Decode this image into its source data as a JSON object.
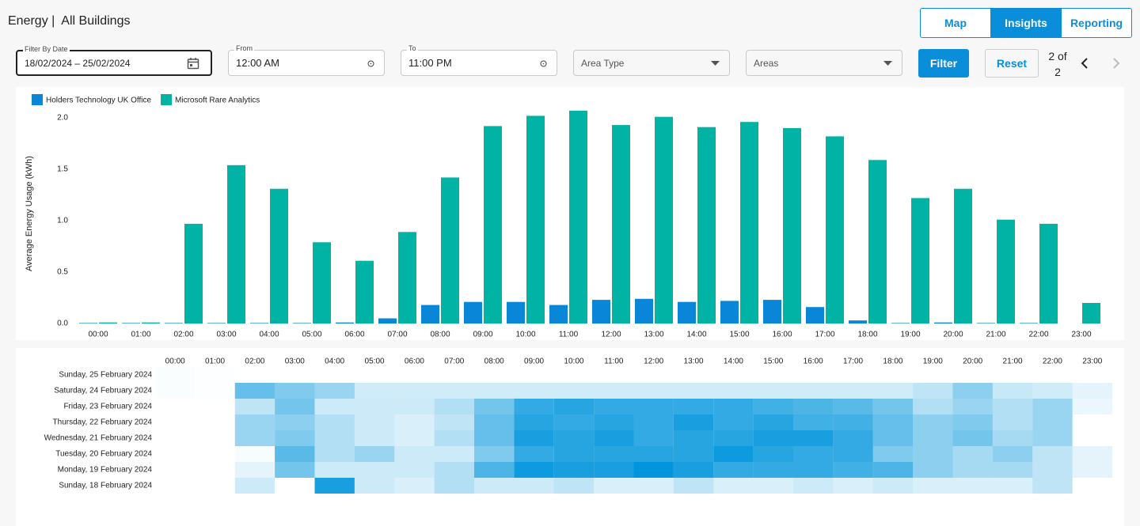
{
  "header": {
    "title": "Energy |  All Buildings",
    "tabs": [
      "Map",
      "Insights",
      "Reporting"
    ]
  },
  "filters": {
    "date": {
      "label": "Filter By Date",
      "value": "18/02/2024 – 25/02/2024"
    },
    "from": {
      "label": "From",
      "value": "12:00 AM"
    },
    "to": {
      "label": "To",
      "value": "11:00 PM"
    },
    "area_type": "Area Type",
    "areas": "Areas",
    "filter_button": "Filter",
    "reset_button": "Reset",
    "pagination": "2 of 2"
  },
  "chart_data": [
    {
      "type": "bar",
      "y_label": "Average Energy Usage (kWh)",
      "categories": [
        "00:00",
        "01:00",
        "02:00",
        "03:00",
        "04:00",
        "05:00",
        "06:00",
        "07:00",
        "08:00",
        "09:00",
        "10:00",
        "11:00",
        "12:00",
        "13:00",
        "14:00",
        "15:00",
        "16:00",
        "17:00",
        "18:00",
        "19:00",
        "20:00",
        "21:00",
        "22:00",
        "23:00"
      ],
      "series": [
        {
          "name": "Holders Technology UK Office",
          "color": "#0a86d8",
          "values": [
            0.005,
            0.005,
            0.005,
            0.005,
            0.005,
            0.005,
            0.01,
            0.05,
            0.18,
            0.21,
            0.21,
            0.18,
            0.23,
            0.24,
            0.21,
            0.22,
            0.23,
            0.16,
            0.03,
            0.005,
            0.01,
            0.005,
            0.005,
            0
          ]
        },
        {
          "name": "Microsoft Rare Analytics",
          "color": "#00b3a4",
          "values": [
            0.01,
            0.01,
            0.97,
            1.54,
            1.31,
            0.79,
            0.61,
            0.89,
            1.42,
            1.92,
            2.02,
            2.07,
            1.93,
            2.01,
            1.91,
            1.96,
            1.9,
            1.82,
            1.59,
            1.22,
            1.31,
            1.01,
            0.97,
            0.2
          ]
        }
      ],
      "ylim": [
        0,
        2.1
      ],
      "yticks": [
        {
          "value": 0,
          "label": "0.0"
        },
        0.5,
        {
          "value": 1,
          "label": "1.0"
        },
        1.5,
        {
          "value": 2,
          "label": "2.0"
        }
      ],
      "grid": false,
      "legend": "top-left"
    },
    {
      "type": "heatmap",
      "color": "#0095dc",
      "x": [
        "00:00",
        "01:00",
        "02:00",
        "03:00",
        "04:00",
        "05:00",
        "06:00",
        "07:00",
        "08:00",
        "09:00",
        "10:00",
        "11:00",
        "12:00",
        "13:00",
        "14:00",
        "15:00",
        "16:00",
        "17:00",
        "18:00",
        "19:00",
        "20:00",
        "21:00",
        "22:00",
        "23:00"
      ],
      "y": [
        "Sunday, 25 February 2024",
        "Saturday, 24 February 2024",
        "Friday, 23 February 2024",
        "Thursday, 22 February 2024",
        "Wednesday, 21 February 2024",
        "Tuesday, 20 February 2024",
        "Monday, 19 February 2024",
        "Sunday, 18 February 2024"
      ],
      "values": [
        [
          0.02,
          0.01,
          null,
          null,
          null,
          null,
          null,
          null,
          null,
          null,
          null,
          null,
          null,
          null,
          null,
          null,
          null,
          null,
          null,
          null,
          null,
          null,
          null,
          null
        ],
        [
          0.02,
          0.01,
          0.6,
          0.5,
          0.4,
          0.18,
          0.18,
          0.18,
          0.18,
          0.18,
          0.18,
          0.18,
          0.18,
          0.18,
          0.18,
          0.18,
          0.18,
          0.18,
          0.18,
          0.25,
          0.45,
          0.22,
          0.18,
          0.1
        ],
        [
          null,
          null,
          0.25,
          0.55,
          0.2,
          0.2,
          0.2,
          0.3,
          0.55,
          0.8,
          0.85,
          0.8,
          0.8,
          0.8,
          0.8,
          0.75,
          0.7,
          0.65,
          0.55,
          0.3,
          0.4,
          0.3,
          0.4,
          0.08
        ],
        [
          null,
          null,
          0.4,
          0.45,
          0.3,
          0.2,
          0.15,
          0.25,
          0.6,
          0.85,
          0.8,
          0.85,
          0.8,
          0.9,
          0.8,
          0.85,
          0.75,
          0.75,
          0.6,
          0.45,
          0.5,
          0.3,
          0.4,
          null
        ],
        [
          null,
          null,
          0.4,
          0.5,
          0.3,
          0.2,
          0.15,
          0.3,
          0.6,
          0.9,
          0.85,
          0.9,
          0.8,
          0.85,
          0.85,
          0.9,
          0.9,
          0.8,
          0.6,
          0.45,
          0.55,
          0.35,
          0.4,
          null
        ],
        [
          null,
          null,
          0.03,
          0.65,
          0.3,
          0.4,
          0.2,
          0.2,
          0.5,
          0.8,
          0.85,
          0.85,
          0.85,
          0.85,
          0.95,
          0.85,
          0.8,
          0.8,
          0.5,
          0.45,
          0.35,
          0.45,
          0.25,
          0.1
        ],
        [
          null,
          null,
          0.1,
          0.55,
          0.2,
          0.2,
          0.2,
          0.3,
          0.7,
          0.95,
          0.9,
          0.9,
          1.0,
          0.9,
          0.8,
          0.8,
          0.8,
          0.75,
          0.7,
          0.45,
          0.35,
          0.35,
          0.25,
          0.1
        ],
        [
          null,
          null,
          0.2,
          null,
          0.9,
          0.2,
          0.15,
          0.3,
          0.2,
          0.2,
          0.25,
          0.15,
          0.15,
          0.25,
          0.15,
          0.15,
          0.2,
          0.15,
          0.2,
          0.15,
          0.15,
          0.15,
          0.25,
          null
        ]
      ]
    }
  ]
}
